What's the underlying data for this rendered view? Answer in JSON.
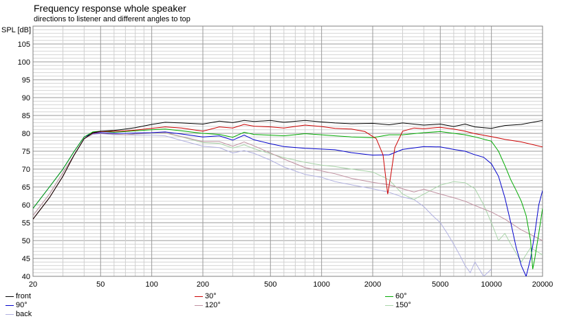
{
  "chart_data": {
    "type": "line",
    "title": "Frequency response whole speaker",
    "subtitle": "directions to listener and different angles to top",
    "ylabel": "SPL [dB]",
    "xlabel": "",
    "xscale": "log",
    "xlim": [
      20,
      20000
    ],
    "ylim": [
      40,
      110
    ],
    "grid": true,
    "x_tick_labels": [
      "20",
      "50",
      "100",
      "200",
      "500",
      "1000",
      "2000",
      "5000",
      "10000",
      "20000"
    ],
    "y_tick_labels": [
      "40",
      "45",
      "50",
      "55",
      "60",
      "65",
      "70",
      "75",
      "80",
      "85",
      "90",
      "95",
      "100",
      "105"
    ],
    "legend_position": "bottom",
    "series": [
      {
        "name": "front",
        "color": "#000000",
        "x": [
          20,
          25,
          30,
          35,
          40,
          45,
          50,
          60,
          70,
          80,
          100,
          120,
          150,
          200,
          250,
          300,
          350,
          400,
          500,
          600,
          800,
          1000,
          1200,
          1500,
          2000,
          2500,
          3000,
          4000,
          5000,
          6000,
          7000,
          8000,
          10000,
          12000,
          15000,
          20000
        ],
        "y": [
          56,
          62,
          68,
          74,
          78.5,
          80.2,
          80.6,
          80.8,
          81.2,
          81.6,
          82.5,
          83.1,
          82.9,
          82.6,
          83.4,
          83,
          83.6,
          83.3,
          83.6,
          83.1,
          83.6,
          83.2,
          82.9,
          82.7,
          82.8,
          82.4,
          82.9,
          82.3,
          82.6,
          81.9,
          82.6,
          81.8,
          81.4,
          82.2,
          82.5,
          83.6
        ]
      },
      {
        "name": "30°",
        "color": "#cc0000",
        "x": [
          20,
          25,
          30,
          35,
          40,
          45,
          50,
          60,
          70,
          80,
          100,
          120,
          150,
          200,
          250,
          300,
          350,
          400,
          500,
          600,
          800,
          1000,
          1200,
          1500,
          1800,
          2100,
          2300,
          2450,
          2550,
          2700,
          3000,
          3500,
          4000,
          5000,
          6000,
          7000,
          8000,
          10000,
          12000,
          15000,
          20000
        ],
        "y": [
          56,
          62,
          68,
          74,
          78.5,
          80.1,
          80.5,
          80.6,
          80.7,
          80.9,
          81.4,
          81.8,
          81.5,
          80.6,
          81.8,
          81.5,
          82.5,
          82,
          81.8,
          81.5,
          82.3,
          81.9,
          81.4,
          81.2,
          80.5,
          78.5,
          74,
          63,
          68,
          76,
          80.6,
          81.5,
          81.3,
          81.7,
          81.2,
          80.6,
          79.9,
          79.1,
          78.3,
          77.6,
          76.2
        ]
      },
      {
        "name": "60°",
        "color": "#00aa00",
        "x": [
          20,
          25,
          30,
          35,
          40,
          45,
          50,
          60,
          70,
          80,
          100,
          120,
          150,
          200,
          250,
          300,
          350,
          400,
          500,
          600,
          800,
          1000,
          1200,
          1500,
          2000,
          2500,
          3000,
          4000,
          5000,
          6000,
          7000,
          8000,
          10000,
          11000,
          12000,
          13000,
          14000,
          15000,
          16000,
          17000,
          17500,
          18000,
          19000,
          20000
        ],
        "y": [
          59,
          65,
          70,
          75,
          79,
          80.4,
          80.6,
          80.3,
          80.5,
          80.7,
          81,
          81.2,
          80.7,
          80,
          79.7,
          78.9,
          80.3,
          79.7,
          79.5,
          79.3,
          79.9,
          79.6,
          79.3,
          79,
          78.8,
          79.6,
          79.6,
          80.2,
          80.5,
          80,
          79.6,
          79,
          77.8,
          75,
          71,
          67,
          64,
          61,
          57,
          50,
          42,
          45,
          52,
          59
        ]
      },
      {
        "name": "90°",
        "color": "#0000cc",
        "x": [
          20,
          25,
          30,
          35,
          40,
          45,
          50,
          60,
          70,
          80,
          100,
          120,
          150,
          200,
          250,
          300,
          350,
          400,
          500,
          600,
          800,
          1000,
          1200,
          1500,
          2000,
          2500,
          3000,
          4000,
          5000,
          6000,
          7000,
          8000,
          9000,
          10000,
          11000,
          12000,
          13000,
          14000,
          15000,
          16000,
          17000,
          18000,
          19000,
          20000
        ],
        "y": [
          59,
          65,
          70,
          75,
          79,
          80,
          80.2,
          80,
          80,
          80.1,
          80.2,
          80.4,
          79.8,
          79,
          79.3,
          78.1,
          79.5,
          78.2,
          77.1,
          76.3,
          75.8,
          75.6,
          75.4,
          74.6,
          73.9,
          74,
          75.5,
          76.3,
          76.2,
          75.5,
          75,
          74,
          73.3,
          71.5,
          68,
          62,
          55,
          48,
          43,
          40,
          45,
          52,
          60,
          64
        ]
      },
      {
        "name": "120°",
        "color": "#c090a0",
        "x": [
          20,
          25,
          30,
          35,
          40,
          45,
          50,
          60,
          70,
          80,
          100,
          120,
          150,
          200,
          250,
          300,
          350,
          400,
          500,
          600,
          800,
          1000,
          1200,
          1500,
          2000,
          2500,
          3000,
          3500,
          4000,
          5000,
          6000,
          7000,
          8000,
          10000,
          12000,
          15000,
          20000
        ],
        "y": [
          57,
          63,
          69,
          74,
          78.5,
          79.9,
          80,
          79.8,
          79.6,
          79.8,
          80.1,
          80.2,
          79.1,
          77.7,
          77.7,
          76.4,
          77.6,
          76.5,
          74.5,
          72.8,
          70.4,
          69.5,
          68.7,
          67.4,
          66.3,
          65.6,
          64.5,
          63.6,
          64.4,
          63,
          62,
          61,
          59.8,
          58,
          56,
          53,
          50
        ]
      },
      {
        "name": "150°",
        "color": "#a8d4a8",
        "x": [
          20,
          25,
          30,
          35,
          40,
          45,
          50,
          60,
          70,
          80,
          100,
          120,
          150,
          200,
          250,
          300,
          350,
          400,
          500,
          600,
          800,
          1000,
          1200,
          1500,
          2000,
          2500,
          3000,
          3500,
          4000,
          5000,
          6000,
          7000,
          8000,
          9000,
          10000,
          11000,
          12000,
          13000,
          15000,
          17000,
          20000
        ],
        "y": [
          57,
          63,
          69,
          74,
          78.5,
          79.9,
          80,
          79.8,
          79.6,
          79.8,
          80,
          80.1,
          79,
          77.4,
          77.2,
          75.9,
          76.8,
          75.7,
          74.3,
          73.2,
          71.9,
          71.1,
          70.7,
          70,
          69.2,
          67,
          63,
          61.5,
          63,
          65.5,
          66.5,
          66.2,
          64.5,
          60,
          55,
          50,
          52,
          49,
          44,
          48,
          46
        ]
      },
      {
        "name": "back",
        "color": "#b0b0e0",
        "x": [
          20,
          25,
          30,
          35,
          40,
          45,
          50,
          60,
          70,
          80,
          100,
          120,
          150,
          200,
          250,
          300,
          350,
          400,
          500,
          600,
          800,
          1000,
          1200,
          1500,
          2000,
          2500,
          3000,
          3500,
          4000,
          4500,
          5000,
          5500,
          6000,
          6500,
          7000,
          7500,
          8000,
          9000,
          10000
        ],
        "y": [
          57,
          63,
          69,
          74,
          78.5,
          79.7,
          79.9,
          79.6,
          79.6,
          79.5,
          79.5,
          79.3,
          78,
          76.4,
          76,
          74.5,
          75.2,
          74.4,
          72.5,
          70.6,
          68.5,
          67.7,
          66.5,
          65.6,
          64.5,
          63.5,
          62.2,
          61.5,
          59.5,
          57,
          55,
          52,
          49,
          46,
          43,
          41,
          44,
          40,
          42
        ]
      }
    ]
  }
}
